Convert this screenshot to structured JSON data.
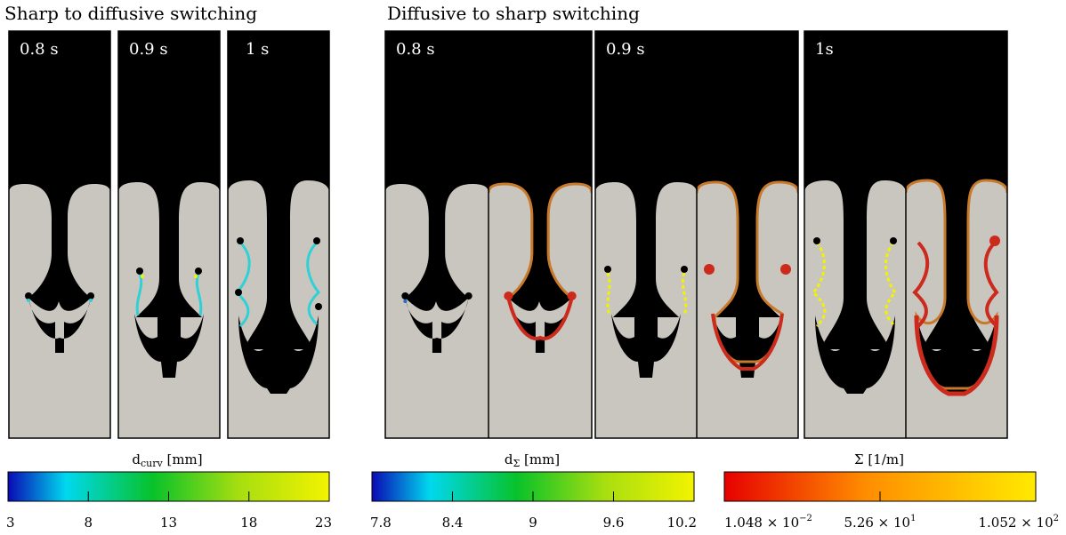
{
  "headings": {
    "left": "Sharp to diffusive switching",
    "right": "Diffusive to sharp switching"
  },
  "left_panels": [
    {
      "time": "0.8 s"
    },
    {
      "time": "0.9 s"
    },
    {
      "time": "1 s"
    }
  ],
  "right_groups": [
    {
      "time": "0.8 s"
    },
    {
      "time": "0.9 s"
    },
    {
      "time": "1s"
    }
  ],
  "colors": {
    "liquid_light": "#c9c6bf",
    "gas_dark": "#000000",
    "interface_diffuse": "#c9792a",
    "interface_sharp": "#cc2a1c",
    "marker_yellow": "#f2f200",
    "marker_cyan": "#2fd0d6"
  },
  "colorbars": [
    {
      "title": "d_curv  [mm]",
      "title_main": "d",
      "title_sub": "curv",
      "title_rest": "  [mm]",
      "colormap": "blue-cyan-green-yellow",
      "ticks": [
        "3",
        "8",
        "13",
        "18",
        "23"
      ]
    },
    {
      "title": "d_Σ  [mm]",
      "title_main": "d",
      "title_sub": "Σ",
      "title_rest": "  [mm]",
      "colormap": "blue-cyan-green-yellow",
      "ticks": [
        "7.8",
        "8.4",
        "9",
        "9.6",
        "10.2"
      ]
    },
    {
      "title": "Σ [1/m]",
      "title_main": "Σ [1/m]",
      "title_sub": "",
      "title_rest": "",
      "colormap": "red-orange-yellow",
      "ticks_mant": [
        "1.048 × 10",
        "5.26 × 10",
        "1.052 × 10"
      ],
      "ticks_exp": [
        "−2",
        "1",
        "2"
      ]
    }
  ]
}
